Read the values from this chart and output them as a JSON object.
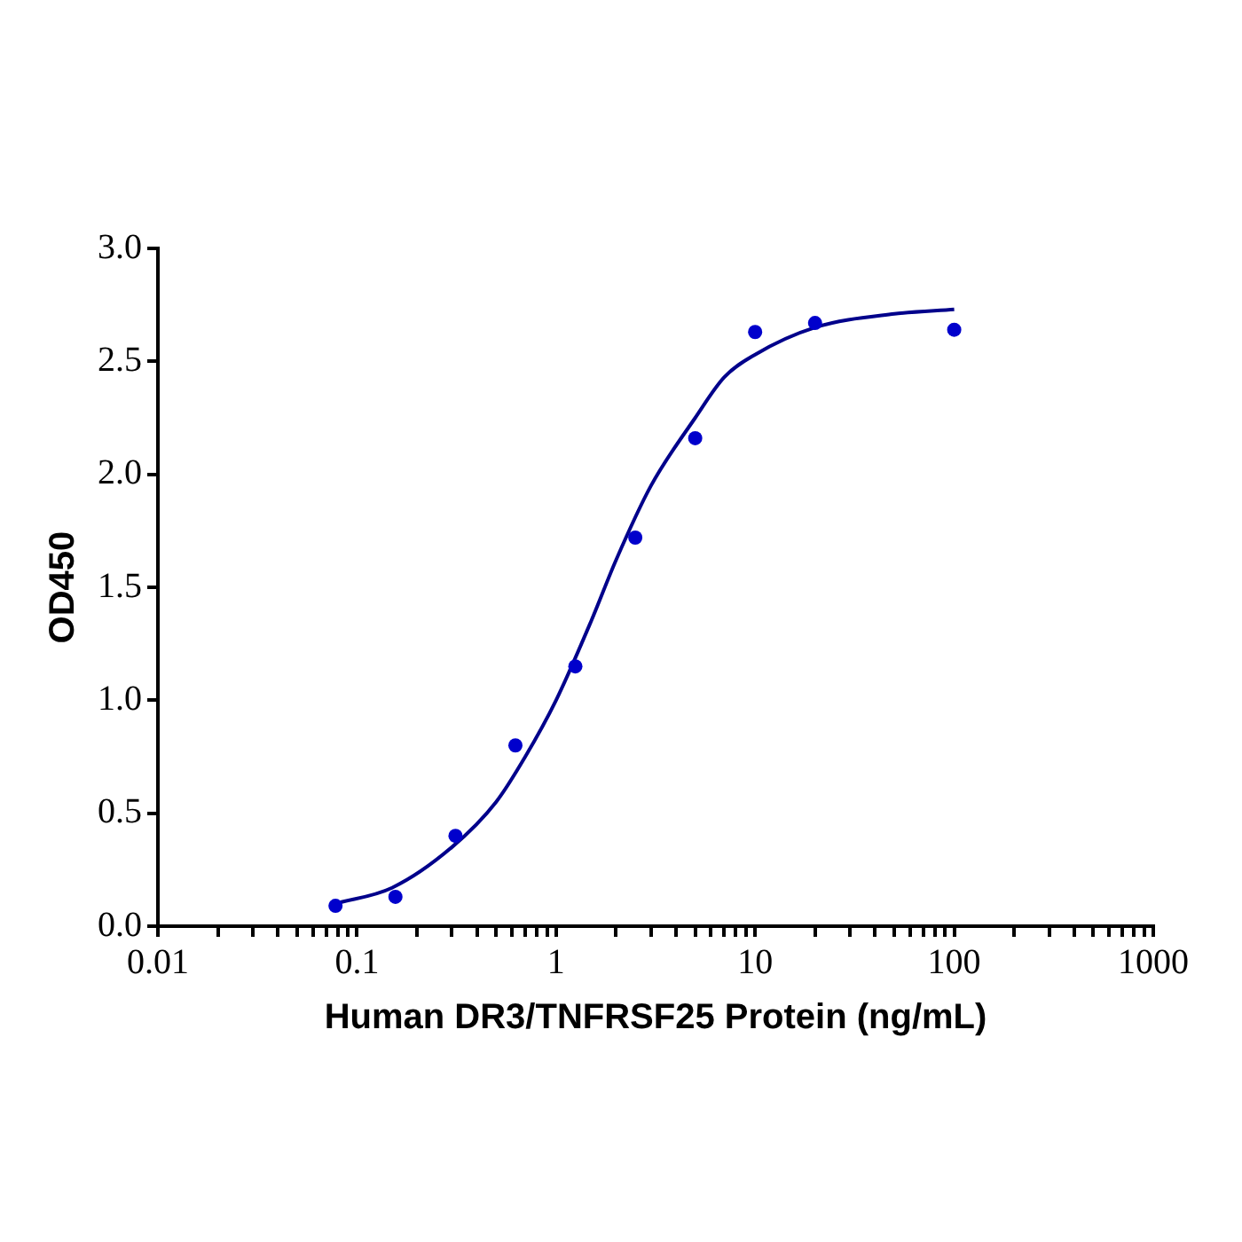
{
  "chart_data": {
    "type": "scatter",
    "xlabel": "Human DR3/TNFRSF25 Protein (ng/mL)",
    "ylabel": "OD450",
    "log": "x",
    "grid": false,
    "legend": false,
    "marker": "circle",
    "xlim": [
      0.01,
      1000
    ],
    "xticks": [
      0.01,
      {
        "value": 0.02,
        "label": null
      },
      {
        "value": 0.03,
        "label": null
      },
      {
        "value": 0.04,
        "label": null
      },
      {
        "value": 0.05,
        "label": null
      },
      {
        "value": 0.06,
        "label": null
      },
      {
        "value": 0.07,
        "label": null
      },
      {
        "value": 0.08,
        "label": null
      },
      {
        "value": 0.09,
        "label": null
      },
      0.1,
      {
        "value": 0.2,
        "label": null
      },
      {
        "value": 0.3,
        "label": null
      },
      {
        "value": 0.4,
        "label": null
      },
      {
        "value": 0.5,
        "label": null
      },
      {
        "value": 0.6,
        "label": null
      },
      {
        "value": 0.7,
        "label": null
      },
      {
        "value": 0.8,
        "label": null
      },
      {
        "value": 0.9,
        "label": null
      },
      1,
      {
        "value": 2,
        "label": null
      },
      {
        "value": 3,
        "label": null
      },
      {
        "value": 4,
        "label": null
      },
      {
        "value": 5,
        "label": null
      },
      {
        "value": 6,
        "label": null
      },
      {
        "value": 7,
        "label": null
      },
      {
        "value": 8,
        "label": null
      },
      {
        "value": 9,
        "label": null
      },
      10,
      {
        "value": 20,
        "label": null
      },
      {
        "value": 30,
        "label": null
      },
      {
        "value": 40,
        "label": null
      },
      {
        "value": 50,
        "label": null
      },
      {
        "value": 60,
        "label": null
      },
      {
        "value": 70,
        "label": null
      },
      {
        "value": 80,
        "label": null
      },
      {
        "value": 90,
        "label": null
      },
      100,
      {
        "value": 200,
        "label": null
      },
      {
        "value": 300,
        "label": null
      },
      {
        "value": 400,
        "label": null
      },
      {
        "value": 500,
        "label": null
      },
      {
        "value": 600,
        "label": null
      },
      {
        "value": 700,
        "label": null
      },
      {
        "value": 800,
        "label": null
      },
      {
        "value": 900,
        "label": null
      },
      1000
    ],
    "ylim": [
      0,
      3
    ],
    "yticks": [
      {
        "value": 0,
        "label": "0.0"
      },
      0.5,
      {
        "value": 1,
        "label": "1.0"
      },
      1.5,
      {
        "value": 2,
        "label": "2.0"
      },
      2.5,
      {
        "value": 3,
        "label": "3.0"
      }
    ],
    "series": [
      {
        "color": "#0000cc",
        "x": [
          0.078,
          0.156,
          0.3125,
          0.625,
          1.25,
          2.5,
          5,
          10,
          20,
          100
        ],
        "values": [
          0.09,
          0.13,
          0.4,
          0.8,
          1.15,
          1.72,
          2.16,
          2.63,
          2.67,
          2.64
        ]
      },
      {
        "type": "line",
        "color": "#00008b",
        "marker": "none",
        "line_style": "solid",
        "x": [
          0.078,
          0.15,
          0.3,
          0.5,
          0.7,
          1,
          1.5,
          2,
          3,
          5,
          7,
          10,
          20,
          50,
          100
        ],
        "values": [
          0.1,
          0.17,
          0.35,
          0.55,
          0.75,
          1.0,
          1.35,
          1.62,
          1.95,
          2.25,
          2.43,
          2.53,
          2.65,
          2.71,
          2.73
        ]
      }
    ]
  }
}
